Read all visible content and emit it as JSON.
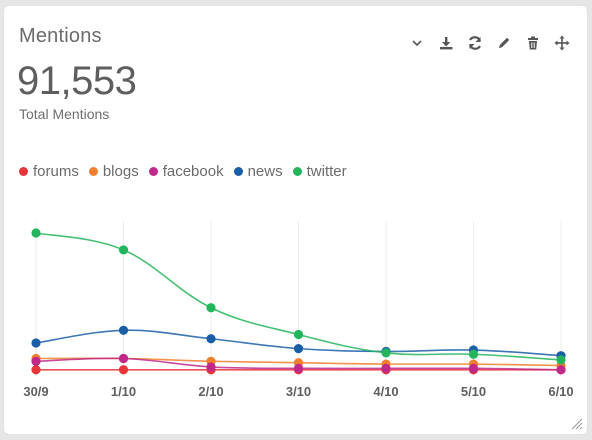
{
  "widget": {
    "title": "Mentions",
    "total_value": "91,553",
    "total_label": "Total Mentions",
    "icons": [
      "chevron-down-icon",
      "download-icon",
      "refresh-icon",
      "edit-icon",
      "trash-icon",
      "move-icon"
    ]
  },
  "colors": {
    "forums": "#e8343b",
    "blogs": "#f07f2e",
    "facebook": "#c0288a",
    "news": "#1a5ea8",
    "twitter": "#23b55b",
    "grid": "#ececec",
    "tick_text": "#5f5f5f"
  },
  "chart_data": {
    "type": "line",
    "categories": [
      "30/9",
      "1/10",
      "2/10",
      "3/10",
      "4/10",
      "5/10",
      "6/10"
    ],
    "ylim": [
      0,
      100
    ],
    "grid": "vertical",
    "legend": "top-left",
    "series": [
      {
        "name": "forums",
        "color": "#e8343b",
        "values": [
          3,
          3,
          3,
          3,
          3,
          3,
          3
        ]
      },
      {
        "name": "blogs",
        "color": "#f07f2e",
        "values": [
          11,
          11,
          9,
          8,
          7,
          7,
          6
        ]
      },
      {
        "name": "facebook",
        "color": "#c0288a",
        "values": [
          9,
          11,
          5,
          4,
          4,
          4,
          3
        ]
      },
      {
        "name": "news",
        "color": "#1a5ea8",
        "values": [
          22,
          31,
          25,
          18,
          16,
          17,
          13
        ]
      },
      {
        "name": "twitter",
        "color": "#23b55b",
        "values": [
          100,
          88,
          47,
          28,
          15,
          14,
          10
        ]
      }
    ]
  }
}
